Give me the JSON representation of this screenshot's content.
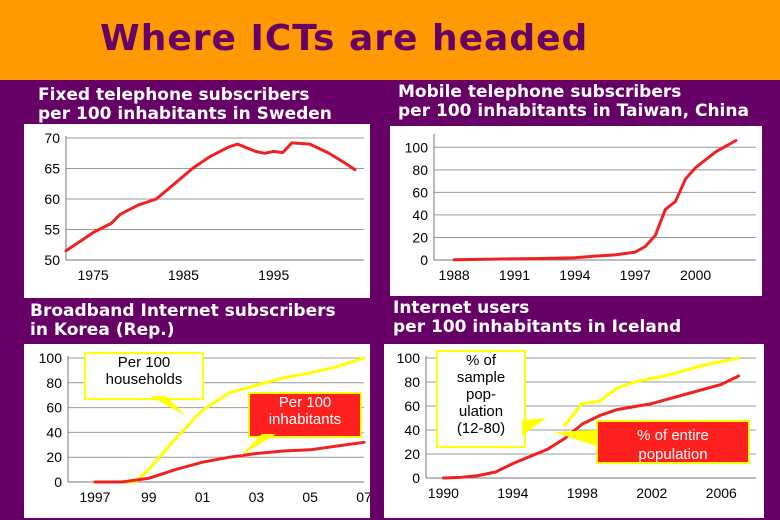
{
  "page": {
    "title": "Where ICTs are headed",
    "accent_orange": "#FF9900",
    "background_purple": "#660066"
  },
  "panels": [
    {
      "title_line1": "Fixed telephone subscribers",
      "title_line2": "per 100 inhabitants in Sweden"
    },
    {
      "title_line1": "Mobile telephone subscribers",
      "title_line2": "per 100 inhabitants in Taiwan, China"
    },
    {
      "title_line1": "Broadband Internet subscribers",
      "title_line2": "in Korea (Rep.)"
    },
    {
      "title_line1": "Internet users",
      "title_line2": "per 100 inhabitants in Iceland"
    }
  ],
  "callouts": {
    "korea_households": [
      "Per 100",
      "households"
    ],
    "korea_inhabitants": [
      "Per 100",
      "inhabitants"
    ],
    "iceland_sample": [
      "% of",
      "sample",
      "pop-",
      "ulation",
      "(12-80)"
    ],
    "iceland_entire": [
      "% of entire",
      "population"
    ]
  },
  "chart_data": [
    {
      "type": "line",
      "xticks": [
        "1975",
        "1985",
        "1995"
      ],
      "yticks": [
        "50",
        "55",
        "60",
        "65",
        "70"
      ],
      "ylim": [
        50,
        70
      ],
      "xlim": [
        1972,
        2005
      ],
      "series": [
        {
          "color": "#EE2222",
          "x": [
            1972,
            1974,
            1975,
            1977,
            1978,
            1980,
            1982,
            1984,
            1986,
            1988,
            1990,
            1991,
            1993,
            1994,
            1995,
            1996,
            1997,
            1999,
            2001,
            2003,
            2004
          ],
          "y": [
            51.5,
            53.5,
            54.5,
            56,
            57.5,
            59,
            60,
            62.5,
            65,
            67,
            68.5,
            69,
            67.8,
            67.5,
            67.8,
            67.6,
            69.2,
            69,
            67.6,
            65.8,
            64.8
          ]
        }
      ]
    },
    {
      "type": "line",
      "xticks": [
        "1988",
        "1991",
        "1994",
        "1997",
        "2000"
      ],
      "yticks": [
        "0",
        "20",
        "40",
        "60",
        "80",
        "100"
      ],
      "ylim": [
        0,
        110
      ],
      "xlim": [
        1987,
        2003
      ],
      "series": [
        {
          "color": "#EE2222",
          "x": [
            1988,
            1990,
            1992,
            1994,
            1995,
            1996,
            1997,
            1997.5,
            1998,
            1998.5,
            1999,
            1999.5,
            2000,
            2001,
            2002
          ],
          "y": [
            0.3,
            0.8,
            1.2,
            2,
            3.5,
            4.5,
            7,
            12,
            22,
            45,
            52,
            72,
            82,
            96,
            106
          ]
        }
      ]
    },
    {
      "type": "line",
      "xticks": [
        "1997",
        "99",
        "01",
        "03",
        "05",
        "07"
      ],
      "yticks": [
        "0",
        "20",
        "40",
        "60",
        "80",
        "100"
      ],
      "ylim": [
        0,
        100
      ],
      "xlim": [
        1996,
        2007
      ],
      "series": [
        {
          "color": "#FFFF00",
          "x": [
            1997,
            1998,
            1998.5,
            1999,
            2000,
            2001,
            2002,
            2003,
            2004,
            2005,
            2006,
            2007
          ],
          "y": [
            0,
            0,
            0,
            10,
            35,
            58,
            72,
            78,
            84,
            88,
            93,
            100
          ]
        },
        {
          "color": "#EE2222",
          "x": [
            1997,
            1998,
            1999,
            2000,
            2001,
            2002,
            2003,
            2004,
            2005,
            2006,
            2007
          ],
          "y": [
            0,
            0,
            3,
            10,
            16,
            20,
            23,
            25,
            26,
            29,
            32
          ]
        }
      ]
    },
    {
      "type": "line",
      "xticks": [
        "1990",
        "1994",
        "1998",
        "2002",
        "2006"
      ],
      "yticks": [
        "0",
        "20",
        "40",
        "60",
        "80",
        "100"
      ],
      "ylim": [
        0,
        100
      ],
      "xlim": [
        1989,
        2008
      ],
      "series": [
        {
          "color": "#FFFF00",
          "x": [
            1997,
            1998,
            1999,
            2000,
            2001,
            2002,
            2003,
            2004,
            2005,
            2006,
            2007
          ],
          "y": [
            44,
            62,
            64,
            75,
            80,
            83,
            86,
            90,
            94,
            97,
            100
          ]
        },
        {
          "color": "#EE2222",
          "x": [
            1990,
            1991,
            1992,
            1993,
            1994,
            1995,
            1996,
            1997,
            1998,
            1999,
            2000,
            2002,
            2004,
            2006,
            2007
          ],
          "y": [
            0,
            0.5,
            2,
            5,
            12,
            18,
            24,
            33,
            45,
            52,
            57,
            62,
            70,
            78,
            85
          ]
        }
      ]
    }
  ]
}
